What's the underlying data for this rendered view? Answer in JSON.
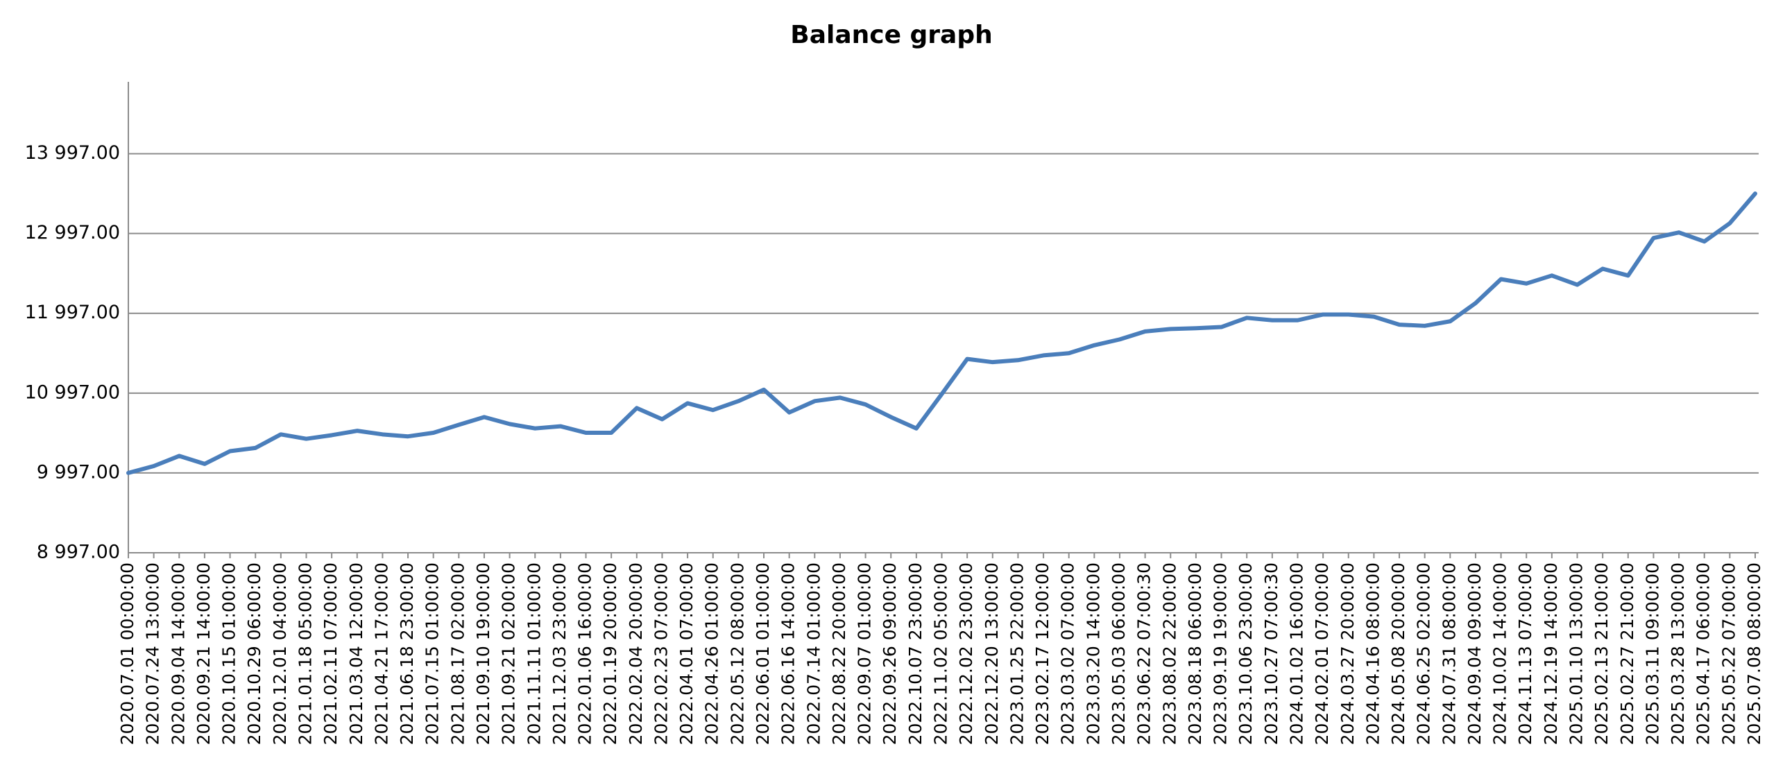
{
  "chart_data": {
    "type": "line",
    "title": "Balance graph",
    "categories": [
      "2020.07.01 00:00:00",
      "2020.07.24 13:00:00",
      "2020.09.04 14:00:00",
      "2020.09.21 14:00:00",
      "2020.10.15 01:00:00",
      "2020.10.29 06:00:00",
      "2020.12.01 04:00:00",
      "2021.01.18 05:00:00",
      "2021.02.11 07:00:00",
      "2021.03.04 12:00:00",
      "2021.04.21 17:00:00",
      "2021.06.18 23:00:00",
      "2021.07.15 01:00:00",
      "2021.08.17 02:00:00",
      "2021.09.10 19:00:00",
      "2021.09.21 02:00:00",
      "2021.11.11 01:00:00",
      "2021.12.03 23:00:00",
      "2022.01.06 16:00:00",
      "2022.01.19 20:00:00",
      "2022.02.04 20:00:00",
      "2022.02.23 07:00:00",
      "2022.04.01 07:00:00",
      "2022.04.26 01:00:00",
      "2022.05.12 08:00:00",
      "2022.06.01 01:00:00",
      "2022.06.16 14:00:00",
      "2022.07.14 01:00:00",
      "2022.08.22 20:00:00",
      "2022.09.07 01:00:00",
      "2022.09.26 09:00:00",
      "2022.10.07 23:00:00",
      "2022.11.02 05:00:00",
      "2022.12.02 23:00:00",
      "2022.12.20 13:00:00",
      "2023.01.25 22:00:00",
      "2023.02.17 12:00:00",
      "2023.03.02 07:00:00",
      "2023.03.20 14:00:00",
      "2023.05.03 06:00:00",
      "2023.06.22 07:00:30",
      "2023.08.02 22:00:00",
      "2023.08.18 06:00:00",
      "2023.09.19 19:00:00",
      "2023.10.06 23:00:00",
      "2023.10.27 07:00:30",
      "2024.01.02 16:00:00",
      "2024.02.01 07:00:00",
      "2024.03.27 20:00:00",
      "2024.04.16 08:00:00",
      "2024.05.08 20:00:00",
      "2024.06.25 02:00:00",
      "2024.07.31 08:00:00",
      "2024.09.04 09:00:00",
      "2024.10.02 14:00:00",
      "2024.11.13 07:00:00",
      "2024.12.19 14:00:00",
      "2025.01.10 13:00:00",
      "2025.02.13 21:00:00",
      "2025.02.27 21:00:00",
      "2025.03.11 09:00:00",
      "2025.03.28 13:00:00",
      "2025.04.17 06:00:00",
      "2025.05.22 07:00:00",
      "2025.07.08 08:00:00"
    ],
    "values": [
      9997,
      10083,
      10210,
      10110,
      10270,
      10310,
      10480,
      10425,
      10470,
      10525,
      10480,
      10455,
      10500,
      10600,
      10697,
      10610,
      10555,
      10582,
      10500,
      10500,
      10810,
      10670,
      10870,
      10785,
      10897,
      11040,
      10755,
      10897,
      10940,
      10855,
      10697,
      10555,
      10985,
      11425,
      11385,
      11410,
      11470,
      11497,
      11597,
      11670,
      11770,
      11800,
      11810,
      11825,
      11940,
      11910,
      11910,
      11982,
      11982,
      11955,
      11855,
      11840,
      11897,
      12125,
      12425,
      12370,
      12470,
      12355,
      12555,
      12470,
      12940,
      13010,
      12897,
      13125,
      13497
    ],
    "color": "#4a7ebb",
    "ylim": [
      8997,
      14897
    ],
    "yticks": [
      {
        "value": 8997,
        "label": "8 997.00"
      },
      {
        "value": 9997,
        "label": "9 997.00"
      },
      {
        "value": 10997,
        "label": "10 997.00"
      },
      {
        "value": 11997,
        "label": "11 997.00"
      },
      {
        "value": 12997,
        "label": "12 997.00"
      },
      {
        "value": 13997,
        "label": "13 997.00"
      }
    ],
    "grid": true
  }
}
